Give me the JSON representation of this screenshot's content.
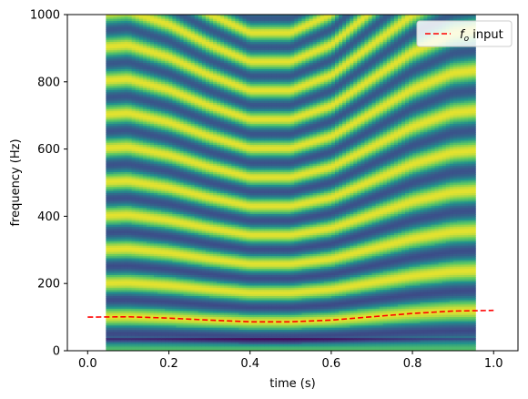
{
  "chart_data": {
    "type": "heatmap",
    "xlabel": "time (s)",
    "ylabel": "frequency (Hz)",
    "xlim": [
      -0.05,
      1.06
    ],
    "ylim": [
      0,
      1000
    ],
    "x_ticks": [
      "0.0",
      "0.2",
      "0.4",
      "0.6",
      "0.8",
      "1.0"
    ],
    "x_tick_values": [
      0.0,
      0.2,
      0.4,
      0.6,
      0.8,
      1.0
    ],
    "y_ticks": [
      "0",
      "200",
      "400",
      "600",
      "800",
      "1000"
    ],
    "y_tick_values": [
      0,
      200,
      400,
      600,
      800,
      1000
    ],
    "spectrogram": {
      "t_start": 0.045,
      "t_end": 0.955,
      "colormap": "viridis",
      "harmonic_spacing_follows": "f0"
    },
    "series": [
      {
        "name": "f_o input",
        "legend_label_main": "f",
        "legend_label_sub": "o",
        "legend_label_rest": " input",
        "style": "dashed",
        "color": "#ff0000",
        "x": [
          0.0,
          0.1,
          0.2,
          0.3,
          0.4,
          0.5,
          0.6,
          0.7,
          0.8,
          0.9,
          1.0
        ],
        "y": [
          100,
          101,
          97,
          91,
          86,
          86,
          91,
          101,
          111,
          118,
          120
        ]
      }
    ],
    "legend_position": "top-right",
    "grid": false
  }
}
